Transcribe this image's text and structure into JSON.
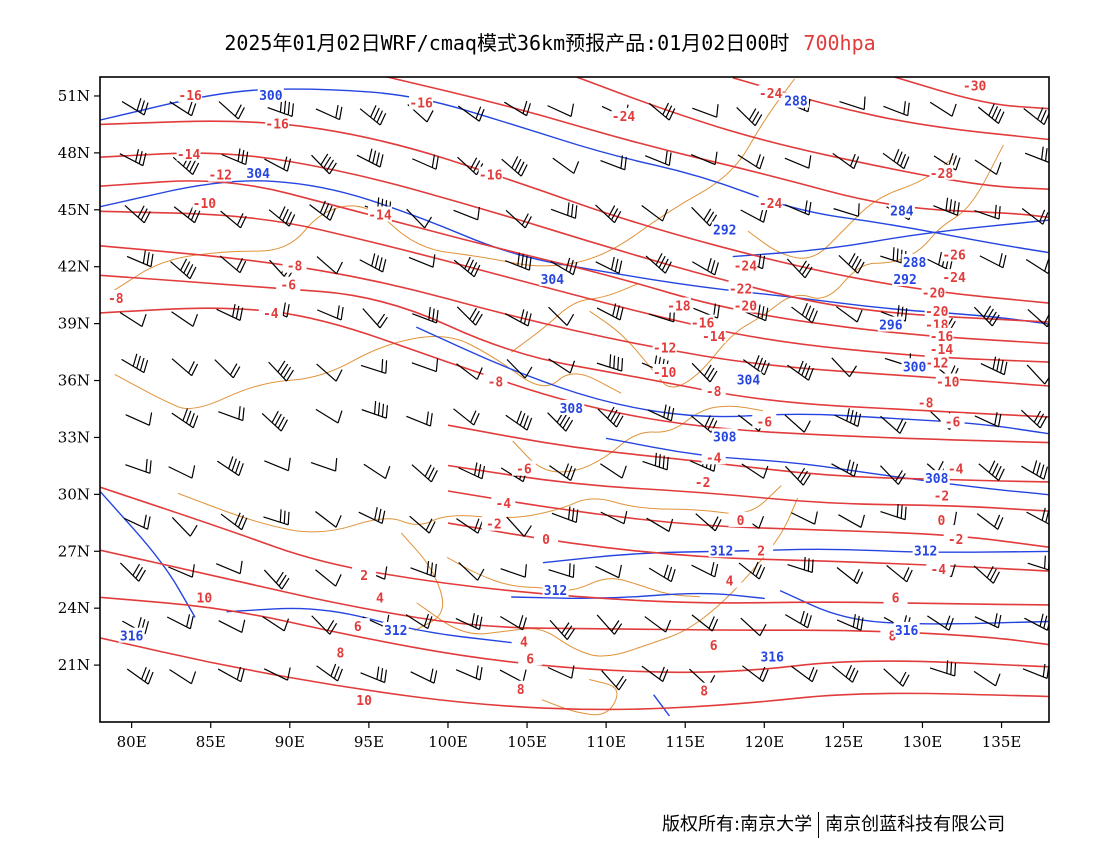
{
  "title": {
    "main": "2025年01月02日WRF/cmaq模式36km预报产品:01月02日00时",
    "level": "700hpa"
  },
  "footer": {
    "copyright": "版权所有:南京大学",
    "company": "南京创蓝科技有限公司"
  },
  "colors": {
    "temperature": "#e23b3b",
    "geopotential": "#2545e0",
    "boundary": "#e0933a",
    "wind_barb": "#000000"
  },
  "axes": {
    "lat_ticks": [
      "51N",
      "48N",
      "45N",
      "42N",
      "39N",
      "36N",
      "33N",
      "30N",
      "27N",
      "24N",
      "21N"
    ],
    "lat_values": [
      51,
      48,
      45,
      42,
      39,
      36,
      33,
      30,
      27,
      24,
      21
    ],
    "lon_ticks": [
      "80E",
      "85E",
      "90E",
      "95E",
      "100E",
      "105E",
      "110E",
      "115E",
      "120E",
      "125E",
      "130E",
      "135E"
    ],
    "lon_values": [
      80,
      85,
      90,
      95,
      100,
      105,
      110,
      115,
      120,
      125,
      130,
      135
    ],
    "lon_range": [
      78,
      138
    ],
    "lat_range": [
      18.0,
      52.0
    ]
  },
  "temperature_labels": [
    {
      "text": "-16",
      "lon": 83.7,
      "lat": 51.0
    },
    {
      "text": "-16",
      "lon": 98.3,
      "lat": 50.6
    },
    {
      "text": "-24",
      "lon": 111.1,
      "lat": 49.9
    },
    {
      "text": "-24",
      "lon": 120.4,
      "lat": 51.1
    },
    {
      "text": "-30",
      "lon": 133.3,
      "lat": 51.5
    },
    {
      "text": "-16",
      "lon": 89.2,
      "lat": 49.5
    },
    {
      "text": "-14",
      "lon": 83.6,
      "lat": 47.9
    },
    {
      "text": "-12",
      "lon": 85.6,
      "lat": 46.8
    },
    {
      "text": "-16",
      "lon": 102.7,
      "lat": 46.8
    },
    {
      "text": "-28",
      "lon": 131.2,
      "lat": 46.9
    },
    {
      "text": "-10",
      "lon": 84.6,
      "lat": 45.3
    },
    {
      "text": "-14",
      "lon": 95.7,
      "lat": 44.7
    },
    {
      "text": "-24",
      "lon": 120.4,
      "lat": 45.3
    },
    {
      "text": "-26",
      "lon": 132.0,
      "lat": 42.6
    },
    {
      "text": "-8",
      "lon": 90.3,
      "lat": 42.0
    },
    {
      "text": "-24",
      "lon": 118.8,
      "lat": 42.0
    },
    {
      "text": "-24",
      "lon": 132.0,
      "lat": 41.4
    },
    {
      "text": "-6",
      "lon": 89.9,
      "lat": 41.0
    },
    {
      "text": "-22",
      "lon": 118.5,
      "lat": 40.8
    },
    {
      "text": "-20",
      "lon": 130.7,
      "lat": 40.6
    },
    {
      "text": "-8",
      "lon": 79.0,
      "lat": 40.3
    },
    {
      "text": "-18",
      "lon": 114.6,
      "lat": 39.9
    },
    {
      "text": "-20",
      "lon": 118.8,
      "lat": 39.9
    },
    {
      "text": "-20",
      "lon": 130.9,
      "lat": 39.6
    },
    {
      "text": "-4",
      "lon": 88.8,
      "lat": 39.5
    },
    {
      "text": "-16",
      "lon": 116.1,
      "lat": 39.0
    },
    {
      "text": "-18",
      "lon": 130.9,
      "lat": 38.9
    },
    {
      "text": "-14",
      "lon": 116.8,
      "lat": 38.3
    },
    {
      "text": "-16",
      "lon": 131.2,
      "lat": 38.3
    },
    {
      "text": "-12",
      "lon": 113.7,
      "lat": 37.7
    },
    {
      "text": "-14",
      "lon": 131.2,
      "lat": 37.6
    },
    {
      "text": "-12",
      "lon": 130.9,
      "lat": 36.9
    },
    {
      "text": "-10",
      "lon": 113.7,
      "lat": 36.4
    },
    {
      "text": "-10",
      "lon": 131.6,
      "lat": 35.9
    },
    {
      "text": "-8",
      "lon": 103.0,
      "lat": 35.9
    },
    {
      "text": "-8",
      "lon": 116.8,
      "lat": 35.4
    },
    {
      "text": "-8",
      "lon": 130.2,
      "lat": 34.8
    },
    {
      "text": "-6",
      "lon": 120.0,
      "lat": 33.8
    },
    {
      "text": "-6",
      "lon": 131.9,
      "lat": 33.8
    },
    {
      "text": "-4",
      "lon": 116.8,
      "lat": 31.9
    },
    {
      "text": "-4",
      "lon": 132.1,
      "lat": 31.3
    },
    {
      "text": "-6",
      "lon": 104.8,
      "lat": 31.3
    },
    {
      "text": "-2",
      "lon": 116.1,
      "lat": 30.6
    },
    {
      "text": "-2",
      "lon": 131.2,
      "lat": 29.9
    },
    {
      "text": "-4",
      "lon": 103.5,
      "lat": 29.5
    },
    {
      "text": "0",
      "lon": 118.5,
      "lat": 28.6
    },
    {
      "text": "0",
      "lon": 131.2,
      "lat": 28.6
    },
    {
      "text": "-2",
      "lon": 102.9,
      "lat": 28.4
    },
    {
      "text": "-2",
      "lon": 132.1,
      "lat": 27.6
    },
    {
      "text": "0",
      "lon": 106.2,
      "lat": 27.6
    },
    {
      "text": "2",
      "lon": 119.8,
      "lat": 27.0
    },
    {
      "text": "2",
      "lon": 94.7,
      "lat": 25.7
    },
    {
      "text": "-4",
      "lon": 131.0,
      "lat": 26.0
    },
    {
      "text": "4",
      "lon": 117.8,
      "lat": 25.4
    },
    {
      "text": "4",
      "lon": 95.7,
      "lat": 24.5
    },
    {
      "text": "6",
      "lon": 128.3,
      "lat": 24.5
    },
    {
      "text": "10",
      "lon": 84.6,
      "lat": 24.5
    },
    {
      "text": "6",
      "lon": 94.3,
      "lat": 23.0
    },
    {
      "text": "4",
      "lon": 104.8,
      "lat": 22.2
    },
    {
      "text": "6",
      "lon": 116.8,
      "lat": 22.0
    },
    {
      "text": "8",
      "lon": 128.1,
      "lat": 22.5
    },
    {
      "text": "8",
      "lon": 93.2,
      "lat": 21.6
    },
    {
      "text": "6",
      "lon": 105.2,
      "lat": 21.3
    },
    {
      "text": "8",
      "lon": 104.6,
      "lat": 19.7
    },
    {
      "text": "8",
      "lon": 116.2,
      "lat": 19.6
    },
    {
      "text": "10",
      "lon": 94.7,
      "lat": 19.1
    }
  ],
  "height_labels": [
    {
      "text": "300",
      "lon": 88.8,
      "lat": 51.0
    },
    {
      "text": "288",
      "lon": 122.0,
      "lat": 50.7
    },
    {
      "text": "304",
      "lon": 88.0,
      "lat": 46.9
    },
    {
      "text": "284",
      "lon": 128.7,
      "lat": 44.9
    },
    {
      "text": "292",
      "lon": 117.5,
      "lat": 43.9
    },
    {
      "text": "288",
      "lon": 129.5,
      "lat": 42.2
    },
    {
      "text": "292",
      "lon": 128.9,
      "lat": 41.3
    },
    {
      "text": "304",
      "lon": 106.6,
      "lat": 41.3
    },
    {
      "text": "296",
      "lon": 128.0,
      "lat": 38.9
    },
    {
      "text": "300",
      "lon": 129.5,
      "lat": 36.7
    },
    {
      "text": "304",
      "lon": 119.0,
      "lat": 36.0
    },
    {
      "text": "308",
      "lon": 107.8,
      "lat": 34.5
    },
    {
      "text": "308",
      "lon": 117.5,
      "lat": 33.0
    },
    {
      "text": "308",
      "lon": 130.9,
      "lat": 30.8
    },
    {
      "text": "312",
      "lon": 117.3,
      "lat": 27.0
    },
    {
      "text": "312",
      "lon": 130.2,
      "lat": 27.0
    },
    {
      "text": "312",
      "lon": 106.8,
      "lat": 24.9
    },
    {
      "text": "312",
      "lon": 96.7,
      "lat": 22.8
    },
    {
      "text": "316",
      "lon": 80.0,
      "lat": 22.5
    },
    {
      "text": "316",
      "lon": 129.0,
      "lat": 22.8
    },
    {
      "text": "316",
      "lon": 120.5,
      "lat": 21.4
    }
  ]
}
